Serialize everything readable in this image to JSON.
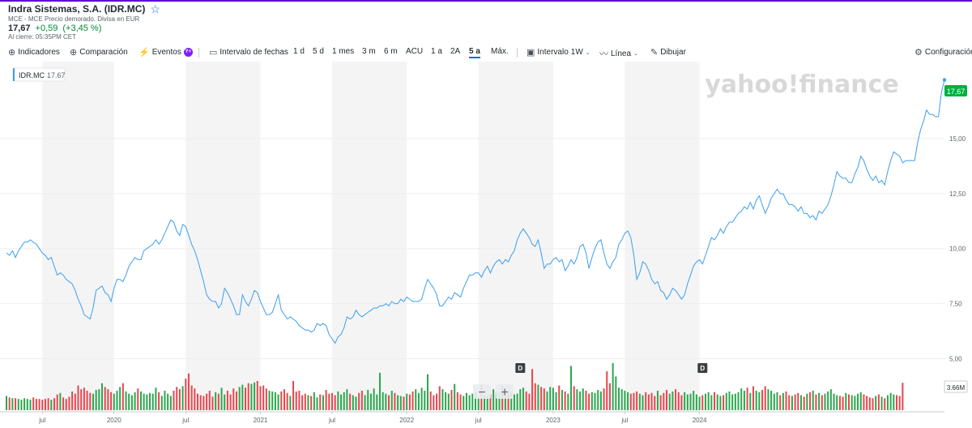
{
  "header": {
    "title": "Indra Sistemas, S.A. (IDR.MC)",
    "subline": "MCE - MCE Precio demorado. Divisa en EUR",
    "price": "17,67",
    "change": "+0,59",
    "change_pct": "(+3,45 %)",
    "close_time": "Al cierre: 05:35PM CET"
  },
  "toolbar": {
    "indicators": "Indicadores",
    "compare": "Comparación",
    "events": "Eventos",
    "events_badge": "Y+",
    "date_range": "Intervalo de fechas",
    "ranges": [
      "1 d",
      "5 d",
      "1 mes",
      "3 m",
      "6 m",
      "ACU",
      "1 a",
      "2A",
      "5 a",
      "Máx."
    ],
    "active_range": "5 a",
    "interval_label": "Intervalo",
    "interval_value": "1W",
    "chart_type": "Línea",
    "draw": "Dibujar",
    "settings": "Configuración"
  },
  "legend": {
    "symbol": "IDR.MC",
    "value": "17.67"
  },
  "watermark": "yahoo!finance",
  "colors": {
    "line": "#3a9eee",
    "up_volume": "#2ca84f",
    "down_volume": "#e8474f",
    "price_badge": "#00b040",
    "accent": "#0f69ff",
    "band": "#f4f4f4"
  },
  "chart_data": {
    "type": "line",
    "series": [
      {
        "name": "IDR.MC",
        "values": [
          9.8,
          9.7,
          9.9,
          9.6,
          9.9,
          10.1,
          10.3,
          10.3,
          10.4,
          10.3,
          10.2,
          10.0,
          9.8,
          9.7,
          9.5,
          9.6,
          9.2,
          8.8,
          8.9,
          8.8,
          8.6,
          8.5,
          8.4,
          8.1,
          7.7,
          7.4,
          7.0,
          6.9,
          6.8,
          7.3,
          8.1,
          8.2,
          8.3,
          8.0,
          7.9,
          7.6,
          8.2,
          8.6,
          8.6,
          8.5,
          8.8,
          9.2,
          9.4,
          9.6,
          9.5,
          9.5,
          9.9,
          10.0,
          10.1,
          10.2,
          10.4,
          10.2,
          10.4,
          10.7,
          11.0,
          11.3,
          11.2,
          10.8,
          10.6,
          11.1,
          11.0,
          10.6,
          10.2,
          9.9,
          9.5,
          9.0,
          8.5,
          7.9,
          7.7,
          7.6,
          7.6,
          7.3,
          7.5,
          8.2,
          8.0,
          7.7,
          7.4,
          7.0,
          7.0,
          7.9,
          7.6,
          7.4,
          7.7,
          8.1,
          8.0,
          7.6,
          7.3,
          7.0,
          7.0,
          7.1,
          7.5,
          7.9,
          7.2,
          7.0,
          6.8,
          6.9,
          6.8,
          6.7,
          6.5,
          6.4,
          6.3,
          6.3,
          6.2,
          6.3,
          6.6,
          6.5,
          6.6,
          6.5,
          6.1,
          5.9,
          5.7,
          6.0,
          6.1,
          6.4,
          6.9,
          6.8,
          6.9,
          7.2,
          7.0,
          6.9,
          7.0,
          7.1,
          7.2,
          7.3,
          7.3,
          7.4,
          7.4,
          7.5,
          7.4,
          7.6,
          7.5,
          7.5,
          7.7,
          7.6,
          7.8,
          7.7,
          7.6,
          7.6,
          7.6,
          7.7,
          8.2,
          8.6,
          8.4,
          8.2,
          7.9,
          7.4,
          7.4,
          7.6,
          7.8,
          7.7,
          8.0,
          7.9,
          7.8,
          8.2,
          8.5,
          8.8,
          8.8,
          8.9,
          8.9,
          8.7,
          9.0,
          9.2,
          8.9,
          9.2,
          9.4,
          9.5,
          9.3,
          9.5,
          9.4,
          9.7,
          9.9,
          10.4,
          10.7,
          10.9,
          10.7,
          10.5,
          10.2,
          10.1,
          10.4,
          9.8,
          9.1,
          9.3,
          9.3,
          9.5,
          9.6,
          9.4,
          9.5,
          9.0,
          9.2,
          9.5,
          9.3,
          9.6,
          10.1,
          10.2,
          9.8,
          9.1,
          9.6,
          10.0,
          10.3,
          10.4,
          9.8,
          9.3,
          9.1,
          9.4,
          9.6,
          10.2,
          10.4,
          10.7,
          10.8,
          10.5,
          9.7,
          8.6,
          8.9,
          9.4,
          9.3,
          9.0,
          8.6,
          8.4,
          8.5,
          8.1,
          8.0,
          7.7,
          7.9,
          8.2,
          8.1,
          7.9,
          7.7,
          7.9,
          8.4,
          8.8,
          9.2,
          9.4,
          9.5,
          9.3,
          9.7,
          10.1,
          10.5,
          10.4,
          10.6,
          10.9,
          10.7,
          11.0,
          11.2,
          11.2,
          11.4,
          11.6,
          11.7,
          11.9,
          11.8,
          12.1,
          11.8,
          12.2,
          12.4,
          12.0,
          11.6,
          11.9,
          12.3,
          12.5,
          12.7,
          12.5,
          12.5,
          12.2,
          12.0,
          12.0,
          11.9,
          11.7,
          11.9,
          11.6,
          11.6,
          11.4,
          11.5,
          11.3,
          11.7,
          11.6,
          11.8,
          12.0,
          12.4,
          12.9,
          13.5,
          13.3,
          13.2,
          13.2,
          13.0,
          13.0,
          13.4,
          13.7,
          14.2,
          14.0,
          13.6,
          13.3,
          13.1,
          13.3,
          13.0,
          13.1,
          12.9,
          13.5,
          14.0,
          14.4,
          14.3,
          14.2,
          13.9,
          14.0,
          14.0,
          14.0,
          14.0,
          14.8,
          15.4,
          15.8,
          16.3,
          16.1,
          16.1,
          16.0,
          16.0,
          17.1,
          17.67
        ]
      }
    ],
    "volume": [
      [
        0,
        1.9
      ],
      [
        1,
        1.7
      ],
      [
        2,
        1.6
      ],
      [
        3,
        1.6
      ],
      [
        4,
        1.5
      ],
      [
        5,
        1.4
      ],
      [
        6,
        1.6
      ],
      [
        7,
        1.5
      ],
      [
        8,
        1.4
      ],
      [
        9,
        1.7
      ],
      [
        10,
        1.5
      ],
      [
        11,
        1.5
      ],
      [
        12,
        1.4
      ],
      [
        13,
        1.5
      ],
      [
        14,
        1.6
      ],
      [
        15,
        1.4
      ],
      [
        16,
        1.6
      ],
      [
        17,
        2.1
      ],
      [
        18,
        2.3
      ],
      [
        19,
        1.7
      ],
      [
        20,
        1.5
      ],
      [
        21,
        1.8
      ],
      [
        22,
        2.5
      ],
      [
        23,
        2.2
      ],
      [
        24,
        3.3
      ],
      [
        25,
        2.8
      ],
      [
        26,
        3.0
      ],
      [
        27,
        2.6
      ],
      [
        28,
        2.3
      ],
      [
        29,
        2.2
      ],
      [
        30,
        2.7
      ],
      [
        31,
        2.8
      ],
      [
        32,
        3.6
      ],
      [
        33,
        3.1
      ],
      [
        34,
        2.8
      ],
      [
        35,
        2.4
      ],
      [
        36,
        2.2
      ],
      [
        37,
        2.6
      ],
      [
        38,
        3.1
      ],
      [
        39,
        3.6
      ],
      [
        40,
        2.5
      ],
      [
        41,
        2.2
      ],
      [
        42,
        2.0
      ],
      [
        43,
        2.4
      ],
      [
        44,
        2.9
      ],
      [
        45,
        2.5
      ],
      [
        46,
        2.2
      ],
      [
        47,
        2.1
      ],
      [
        48,
        2.3
      ],
      [
        49,
        2.2
      ],
      [
        50,
        3.0
      ],
      [
        51,
        2.4
      ],
      [
        52,
        1.9
      ],
      [
        53,
        2.6
      ],
      [
        54,
        2.2
      ],
      [
        55,
        1.9
      ],
      [
        56,
        2.6
      ],
      [
        57,
        3.1
      ],
      [
        58,
        2.8
      ],
      [
        59,
        3.2
      ],
      [
        60,
        4.2
      ],
      [
        61,
        4.9
      ],
      [
        62,
        3.3
      ],
      [
        63,
        2.9
      ],
      [
        64,
        2.2
      ],
      [
        65,
        2.0
      ],
      [
        66,
        1.9
      ],
      [
        67,
        2.2
      ],
      [
        68,
        2.6
      ],
      [
        69,
        1.8
      ],
      [
        70,
        2.4
      ],
      [
        71,
        2.2
      ],
      [
        72,
        3.0
      ],
      [
        73,
        2.1
      ],
      [
        74,
        2.6
      ],
      [
        75,
        2.1
      ],
      [
        76,
        2.9
      ],
      [
        77,
        2.5
      ],
      [
        78,
        3.1
      ],
      [
        79,
        3.4
      ],
      [
        80,
        3.0
      ],
      [
        81,
        3.6
      ],
      [
        82,
        3.5
      ],
      [
        83,
        3.7
      ],
      [
        84,
        3.9
      ],
      [
        85,
        3.2
      ],
      [
        86,
        3.3
      ],
      [
        87,
        2.9
      ],
      [
        88,
        2.6
      ],
      [
        89,
        2.5
      ],
      [
        90,
        2.4
      ],
      [
        91,
        2.1
      ],
      [
        92,
        2.5
      ],
      [
        93,
        2.8
      ],
      [
        94,
        2.3
      ],
      [
        95,
        1.9
      ],
      [
        96,
        3.9
      ],
      [
        97,
        2.5
      ],
      [
        98,
        2.6
      ],
      [
        99,
        2.0
      ],
      [
        100,
        2.2
      ],
      [
        101,
        2.0
      ],
      [
        102,
        1.9
      ],
      [
        103,
        2.4
      ],
      [
        104,
        1.7
      ],
      [
        105,
        2.1
      ],
      [
        106,
        2.0
      ],
      [
        107,
        2.7
      ],
      [
        108,
        2.2
      ],
      [
        109,
        2.3
      ],
      [
        110,
        2.0
      ],
      [
        111,
        2.5
      ],
      [
        112,
        2.1
      ],
      [
        113,
        2.4
      ],
      [
        114,
        2.8
      ],
      [
        115,
        2.2
      ],
      [
        116,
        2.0
      ],
      [
        117,
        1.8
      ],
      [
        118,
        2.3
      ],
      [
        119,
        2.6
      ],
      [
        120,
        2.0
      ],
      [
        121,
        2.7
      ],
      [
        122,
        2.2
      ],
      [
        123,
        2.9
      ],
      [
        124,
        2.1
      ],
      [
        125,
        5.0
      ],
      [
        126,
        2.4
      ],
      [
        127,
        2.2
      ],
      [
        128,
        2.0
      ],
      [
        129,
        2.6
      ],
      [
        130,
        2.3
      ],
      [
        131,
        2.0
      ],
      [
        132,
        1.9
      ],
      [
        133,
        1.8
      ],
      [
        134,
        2.2
      ],
      [
        135,
        2.1
      ],
      [
        136,
        2.5
      ],
      [
        137,
        2.8
      ],
      [
        138,
        2.3
      ],
      [
        139,
        3.0
      ],
      [
        140,
        2.6
      ],
      [
        141,
        4.8
      ],
      [
        142,
        2.5
      ],
      [
        143,
        2.0
      ],
      [
        144,
        2.2
      ],
      [
        145,
        3.2
      ],
      [
        146,
        2.8
      ],
      [
        147,
        2.4
      ],
      [
        148,
        2.2
      ],
      [
        149,
        2.7
      ],
      [
        150,
        3.5
      ],
      [
        151,
        2.4
      ],
      [
        152,
        2.1
      ],
      [
        153,
        1.9
      ],
      [
        154,
        2.3
      ],
      [
        155,
        2.0
      ],
      [
        156,
        2.2
      ],
      [
        157,
        2.4
      ],
      [
        158,
        1.8
      ],
      [
        159,
        3.4
      ],
      [
        160,
        2.0
      ],
      [
        161,
        1.9
      ],
      [
        162,
        2.1
      ],
      [
        163,
        2.8
      ],
      [
        164,
        2.4
      ],
      [
        165,
        2.3
      ],
      [
        166,
        3.3
      ],
      [
        167,
        3.0
      ],
      [
        168,
        2.6
      ],
      [
        169,
        2.4
      ],
      [
        170,
        2.1
      ],
      [
        171,
        2.2
      ],
      [
        172,
        2.8
      ],
      [
        173,
        3.0
      ],
      [
        174,
        2.5
      ],
      [
        175,
        2.2
      ],
      [
        176,
        5.5
      ],
      [
        177,
        3.6
      ],
      [
        178,
        3.4
      ],
      [
        179,
        3.1
      ],
      [
        180,
        2.9
      ],
      [
        181,
        2.5
      ],
      [
        182,
        3.1
      ],
      [
        183,
        3.0
      ],
      [
        184,
        2.4
      ],
      [
        185,
        3.3
      ],
      [
        186,
        2.7
      ],
      [
        187,
        2.5
      ],
      [
        188,
        2.2
      ],
      [
        189,
        5.9
      ],
      [
        190,
        3.2
      ],
      [
        191,
        2.8
      ],
      [
        192,
        2.5
      ],
      [
        193,
        2.9
      ],
      [
        194,
        2.6
      ],
      [
        195,
        2.2
      ],
      [
        196,
        2.4
      ],
      [
        197,
        2.3
      ],
      [
        198,
        2.7
      ],
      [
        199,
        2.5
      ],
      [
        200,
        2.9
      ],
      [
        201,
        5.2
      ],
      [
        202,
        3.6
      ],
      [
        203,
        6.3
      ],
      [
        204,
        4.5
      ],
      [
        205,
        3.0
      ],
      [
        206,
        2.8
      ],
      [
        207,
        2.6
      ],
      [
        208,
        2.4
      ],
      [
        209,
        2.2
      ],
      [
        210,
        2.3
      ],
      [
        211,
        2.5
      ],
      [
        212,
        2.2
      ],
      [
        213,
        2.0
      ],
      [
        214,
        2.4
      ],
      [
        215,
        2.1
      ],
      [
        216,
        2.3
      ],
      [
        217,
        1.9
      ],
      [
        218,
        2.6
      ],
      [
        219,
        2.0
      ],
      [
        220,
        2.3
      ],
      [
        221,
        2.7
      ],
      [
        222,
        2.2
      ],
      [
        223,
        2.5
      ],
      [
        224,
        2.8
      ],
      [
        225,
        2.4
      ],
      [
        226,
        2.0
      ],
      [
        227,
        2.4
      ],
      [
        228,
        2.1
      ],
      [
        229,
        2.2
      ],
      [
        230,
        2.6
      ],
      [
        231,
        2.1
      ],
      [
        232,
        1.8
      ],
      [
        233,
        2.0
      ],
      [
        234,
        2.2
      ],
      [
        235,
        2.4
      ],
      [
        236,
        2.0
      ],
      [
        237,
        2.4
      ],
      [
        238,
        2.1
      ],
      [
        239,
        1.9
      ],
      [
        240,
        2.0
      ],
      [
        241,
        2.3
      ],
      [
        242,
        2.5
      ],
      [
        243,
        2.1
      ],
      [
        244,
        2.2
      ],
      [
        245,
        2.4
      ],
      [
        246,
        2.9
      ],
      [
        247,
        2.6
      ],
      [
        248,
        3.0
      ],
      [
        249,
        2.3
      ],
      [
        250,
        3.2
      ],
      [
        251,
        2.6
      ],
      [
        252,
        2.4
      ],
      [
        253,
        2.7
      ],
      [
        254,
        3.2
      ],
      [
        255,
        2.8
      ],
      [
        256,
        2.6
      ],
      [
        257,
        2.2
      ],
      [
        258,
        2.4
      ],
      [
        259,
        2.0
      ],
      [
        260,
        2.3
      ],
      [
        261,
        2.5
      ],
      [
        262,
        2.0
      ],
      [
        263,
        1.9
      ],
      [
        264,
        2.1
      ],
      [
        265,
        2.3
      ],
      [
        266,
        2.0
      ],
      [
        267,
        1.8
      ],
      [
        268,
        2.2
      ],
      [
        269,
        2.4
      ],
      [
        270,
        2.6
      ],
      [
        271,
        2.1
      ],
      [
        272,
        2.3
      ],
      [
        273,
        2.0
      ],
      [
        274,
        2.2
      ],
      [
        275,
        2.5
      ],
      [
        276,
        2.8
      ],
      [
        277,
        2.2
      ],
      [
        278,
        2.0
      ],
      [
        279,
        1.9
      ],
      [
        280,
        1.8
      ],
      [
        281,
        2.3
      ],
      [
        282,
        2.1
      ],
      [
        283,
        2.0
      ],
      [
        284,
        1.9
      ],
      [
        285,
        2.2
      ],
      [
        286,
        2.4
      ],
      [
        287,
        2.1
      ],
      [
        288,
        1.9
      ],
      [
        289,
        1.7
      ],
      [
        290,
        1.6
      ],
      [
        291,
        1.9
      ],
      [
        292,
        2.1
      ],
      [
        293,
        1.8
      ],
      [
        294,
        1.6
      ],
      [
        295,
        2.0
      ],
      [
        296,
        2.3
      ],
      [
        297,
        2.1
      ],
      [
        298,
        2.0
      ],
      [
        299,
        1.9
      ],
      [
        300,
        3.66
      ]
    ],
    "y_ticks": [
      "15,00",
      "12,50",
      "10,00",
      "7,50",
      "5,00"
    ],
    "y_tick_values": [
      15,
      12.5,
      10,
      7.5,
      5
    ],
    "ylim": [
      4.5,
      18.5
    ],
    "x_ticks": [
      "jul",
      "2020",
      "jul",
      "2021",
      "jul",
      "2022",
      "jul",
      "2023",
      "jul",
      "2024"
    ],
    "x_tick_index": [
      12,
      36,
      60,
      85,
      109,
      134,
      158,
      183,
      207,
      232
    ],
    "last_value_label": "17,67",
    "volume_label": "3.66M",
    "dividend_markers": [
      {
        "label": "D",
        "index": 172
      },
      {
        "label": "D",
        "index": 233
      }
    ],
    "grid": true
  }
}
